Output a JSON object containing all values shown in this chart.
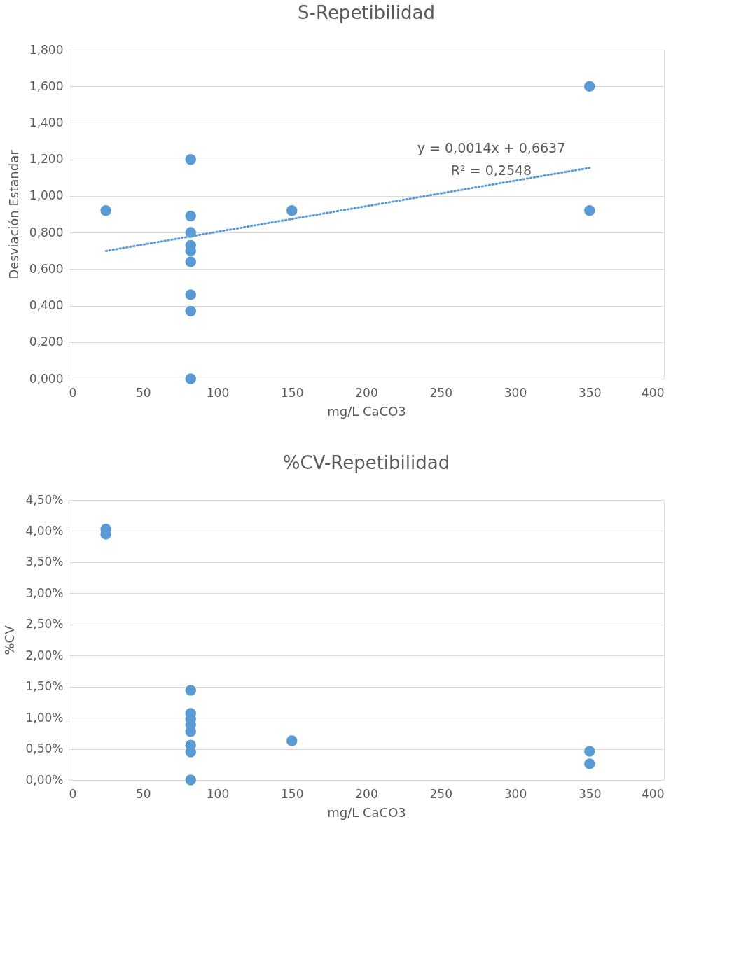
{
  "chart_data": [
    {
      "type": "scatter",
      "title": "S-Repetibilidad",
      "xlabel": "mg/L CaCO3",
      "ylabel": "Desviación Estandar",
      "xlim": [
        0,
        400
      ],
      "xticks": [
        0,
        50,
        100,
        150,
        200,
        250,
        300,
        350,
        400
      ],
      "ylim": [
        0,
        1.8
      ],
      "yticks": [
        {
          "value": 0,
          "label": "0,000"
        },
        {
          "value": 0.2,
          "label": "0,200"
        },
        {
          "value": 0.4,
          "label": "0,400"
        },
        {
          "value": 0.6,
          "label": "0,600"
        },
        {
          "value": 0.8,
          "label": "0,800"
        },
        {
          "value": 1.0,
          "label": "1,000"
        },
        {
          "value": 1.2,
          "label": "1,200"
        },
        {
          "value": 1.4,
          "label": "1,400"
        },
        {
          "value": 1.6,
          "label": "1,600"
        },
        {
          "value": 1.8,
          "label": "1,800"
        }
      ],
      "grid": "y",
      "series": [
        {
          "color": "#5b9bd5",
          "marker": "circle",
          "x": [
            25,
            82,
            82,
            82,
            82,
            82,
            82,
            82,
            82,
            82,
            150,
            350,
            350
          ],
          "values": [
            0.92,
            1.2,
            0.89,
            0.8,
            0.73,
            0.7,
            0.64,
            0.46,
            0.37,
            0.0,
            0.92,
            1.6,
            0.92
          ]
        },
        {
          "type": "line",
          "color": "#5b9bd5",
          "marker": "none",
          "line_style": "dotted",
          "x": [
            25,
            350
          ],
          "values": [
            0.699,
            1.154
          ]
        }
      ],
      "annotations": [
        "y = 0,0014x + 0,6637",
        "R² = 0,2548"
      ]
    },
    {
      "type": "scatter",
      "title": "%CV-Repetibilidad",
      "xlabel": "mg/L CaCO3",
      "ylabel": "%CV",
      "xlim": [
        0,
        400
      ],
      "xticks": [
        0,
        50,
        100,
        150,
        200,
        250,
        300,
        350,
        400
      ],
      "ylim": [
        0,
        4.5
      ],
      "yticks": [
        {
          "value": 0,
          "label": "0,00%"
        },
        {
          "value": 0.5,
          "label": "0,50%"
        },
        {
          "value": 1.0,
          "label": "1,00%"
        },
        {
          "value": 1.5,
          "label": "1,50%"
        },
        {
          "value": 2.0,
          "label": "2,00%"
        },
        {
          "value": 2.5,
          "label": "2,50%"
        },
        {
          "value": 3.0,
          "label": "3,00%"
        },
        {
          "value": 3.5,
          "label": "3,50%"
        },
        {
          "value": 4.0,
          "label": "4,00%"
        },
        {
          "value": 4.5,
          "label": "4,50%"
        }
      ],
      "grid": "y",
      "marker": "circle",
      "series": [
        {
          "color": "#5b9bd5",
          "x": [
            25,
            25,
            82,
            82,
            82,
            82,
            82,
            82,
            82,
            82,
            150,
            350,
            350
          ],
          "values": [
            4.03,
            3.95,
            1.44,
            1.07,
            0.98,
            0.89,
            0.78,
            0.56,
            0.45,
            0.0,
            0.63,
            0.46,
            0.26
          ]
        }
      ]
    }
  ]
}
